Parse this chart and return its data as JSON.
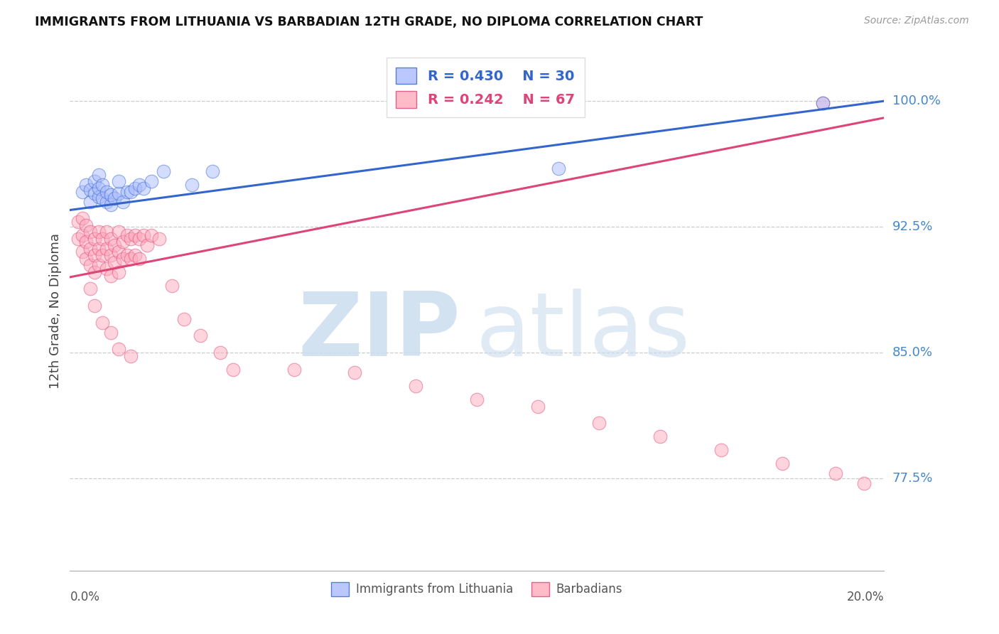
{
  "title": "IMMIGRANTS FROM LITHUANIA VS BARBADIAN 12TH GRADE, NO DIPLOMA CORRELATION CHART",
  "source": "Source: ZipAtlas.com",
  "ylabel": "12th Grade, No Diploma",
  "ytick_labels": [
    "100.0%",
    "92.5%",
    "85.0%",
    "77.5%"
  ],
  "ytick_values": [
    1.0,
    0.925,
    0.85,
    0.775
  ],
  "xmin": 0.0,
  "xmax": 0.2,
  "ymin": 0.72,
  "ymax": 1.03,
  "color_lithuania": "#aabbff",
  "color_barbadian": "#ffaabb",
  "color_line_lithuania": "#3366cc",
  "color_line_barbadian": "#dd4477",
  "color_ytick": "#4488cc",
  "lith_x": [
    0.003,
    0.004,
    0.005,
    0.005,
    0.006,
    0.006,
    0.007,
    0.007,
    0.007,
    0.008,
    0.008,
    0.009,
    0.009,
    0.01,
    0.01,
    0.011,
    0.012,
    0.012,
    0.013,
    0.014,
    0.015,
    0.016,
    0.017,
    0.018,
    0.02,
    0.023,
    0.03,
    0.035,
    0.12,
    0.185
  ],
  "lith_y": [
    0.946,
    0.95,
    0.94,
    0.947,
    0.945,
    0.952,
    0.943,
    0.948,
    0.956,
    0.942,
    0.95,
    0.94,
    0.946,
    0.938,
    0.944,
    0.942,
    0.945,
    0.952,
    0.94,
    0.946,
    0.946,
    0.948,
    0.95,
    0.948,
    0.952,
    0.958,
    0.95,
    0.958,
    0.96,
    0.999
  ],
  "barb_x": [
    0.002,
    0.002,
    0.003,
    0.003,
    0.003,
    0.004,
    0.004,
    0.004,
    0.005,
    0.005,
    0.005,
    0.006,
    0.006,
    0.006,
    0.007,
    0.007,
    0.007,
    0.008,
    0.008,
    0.009,
    0.009,
    0.009,
    0.01,
    0.01,
    0.01,
    0.011,
    0.011,
    0.012,
    0.012,
    0.012,
    0.013,
    0.013,
    0.014,
    0.014,
    0.015,
    0.015,
    0.016,
    0.016,
    0.017,
    0.017,
    0.018,
    0.019,
    0.02,
    0.022,
    0.025,
    0.028,
    0.032,
    0.037,
    0.04,
    0.055,
    0.07,
    0.085,
    0.1,
    0.115,
    0.13,
    0.145,
    0.16,
    0.175,
    0.188,
    0.195,
    0.005,
    0.006,
    0.008,
    0.01,
    0.012,
    0.015,
    0.185
  ],
  "barb_y": [
    0.928,
    0.918,
    0.93,
    0.92,
    0.91,
    0.926,
    0.916,
    0.906,
    0.922,
    0.912,
    0.902,
    0.918,
    0.908,
    0.898,
    0.922,
    0.912,
    0.902,
    0.918,
    0.908,
    0.922,
    0.912,
    0.9,
    0.918,
    0.908,
    0.896,
    0.914,
    0.904,
    0.922,
    0.91,
    0.898,
    0.916,
    0.906,
    0.92,
    0.908,
    0.918,
    0.906,
    0.92,
    0.908,
    0.918,
    0.906,
    0.92,
    0.914,
    0.92,
    0.918,
    0.89,
    0.87,
    0.86,
    0.85,
    0.84,
    0.84,
    0.838,
    0.83,
    0.822,
    0.818,
    0.808,
    0.8,
    0.792,
    0.784,
    0.778,
    0.772,
    0.888,
    0.878,
    0.868,
    0.862,
    0.852,
    0.848,
    0.999
  ]
}
